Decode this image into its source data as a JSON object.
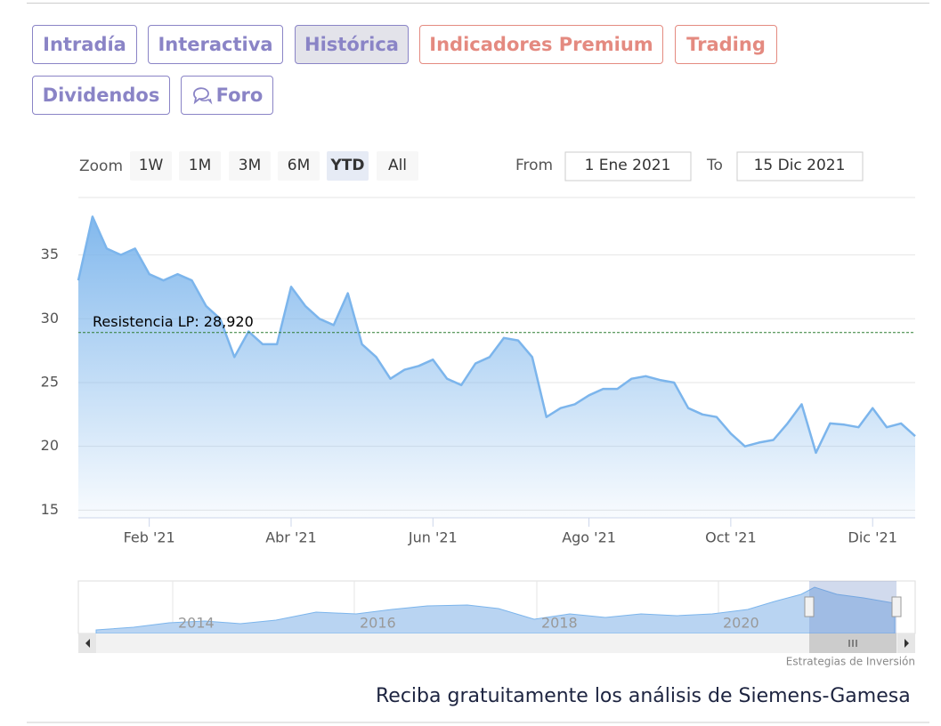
{
  "tabs": [
    {
      "label": "Intradía",
      "color": "#8a84c6",
      "bg": "#ffffff"
    },
    {
      "label": "Interactiva",
      "color": "#8a84c6",
      "bg": "#ffffff"
    },
    {
      "label": "Histórica",
      "color": "#8a84c6",
      "bg": "#e3e3ea"
    },
    {
      "label": "Indicadores Premium",
      "color": "#e48a80",
      "bg": "#ffffff"
    },
    {
      "label": "Trading",
      "color": "#e48a80",
      "bg": "#ffffff"
    },
    {
      "label": "Dividendos",
      "color": "#8a84c6",
      "bg": "#ffffff"
    },
    {
      "label": "Foro",
      "color": "#8a84c6",
      "bg": "#ffffff"
    }
  ],
  "zoom_label": "Zoom",
  "range_buttons": [
    "1W",
    "1M",
    "3M",
    "6M",
    "YTD",
    "All"
  ],
  "selected_range": "YTD",
  "from_label": "From",
  "from": "1 Ene 2021",
  "to_label": "To",
  "to": "15 Dic 2021",
  "chart_data": {
    "type": "area",
    "categories": [
      null,
      null,
      null,
      null,
      null,
      "Feb '21",
      null,
      null,
      null,
      null,
      null,
      null,
      null,
      null,
      null,
      "Abr '21",
      null,
      null,
      null,
      null,
      null,
      null,
      null,
      null,
      null,
      "Jun '21",
      null,
      null,
      null,
      null,
      null,
      null,
      null,
      null,
      null,
      null,
      "Ago '21",
      null,
      null,
      null,
      null,
      null,
      null,
      null,
      null,
      null,
      "Oct '21",
      null,
      null,
      null,
      null,
      null,
      null,
      null,
      null,
      null,
      "Dic '21",
      null,
      null,
      null
    ],
    "values": [
      33,
      38,
      35.5,
      35,
      35.5,
      33.5,
      33,
      33.5,
      33,
      31,
      30,
      27,
      29,
      28,
      28,
      32.5,
      31,
      30,
      29.5,
      32,
      28,
      27,
      25.3,
      26,
      26.3,
      26.8,
      25.3,
      24.8,
      26.5,
      27,
      28.5,
      28.3,
      27,
      22.3,
      23,
      23.3,
      24,
      24.5,
      24.5,
      25.3,
      25.5,
      25.2,
      25,
      23,
      22.5,
      22.3,
      21,
      20,
      20.3,
      20.5,
      21.8,
      23.3,
      19.5,
      21.8,
      21.7,
      21.5,
      23,
      21.5,
      21.8,
      20.8
    ],
    "color": "#7cb5ec",
    "ylim": [
      14.4,
      39.5
    ],
    "yticks": [
      15,
      20,
      25,
      30,
      35
    ],
    "grid": true,
    "reference_lines": [
      {
        "value": 28.92,
        "label": "Resistencia LP: 28,920",
        "color": "#2e7d32"
      }
    ]
  },
  "navigator": {
    "labels": [
      "2014",
      "2016",
      "2018",
      "2020"
    ]
  },
  "credits": "Estrategias de Inversión",
  "footer": "Reciba gratuitamente los análisis de Siemens-Gamesa"
}
